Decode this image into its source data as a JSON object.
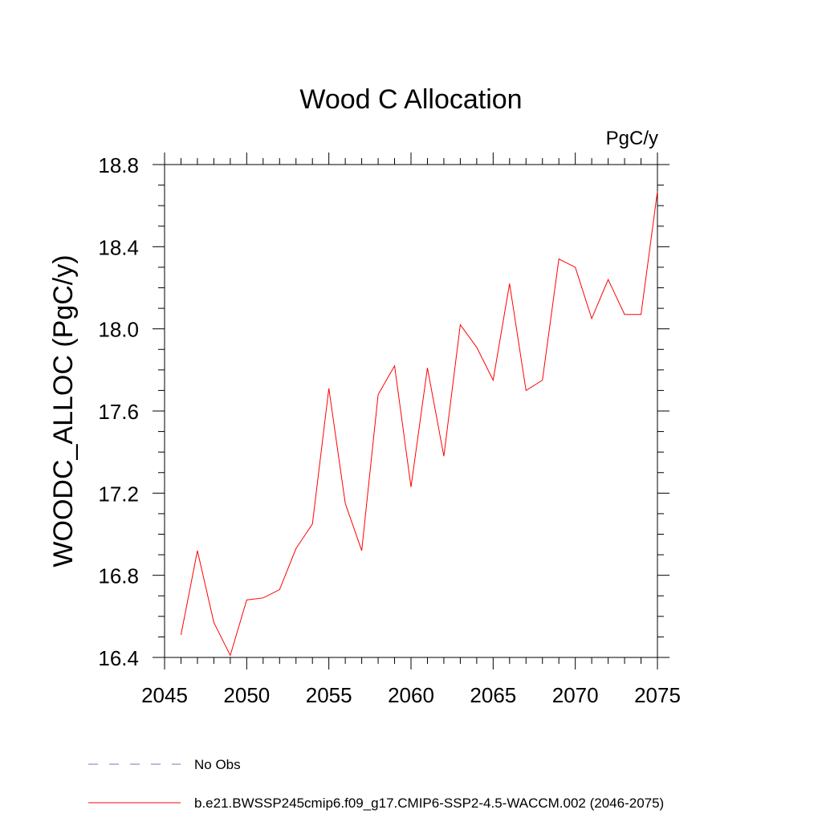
{
  "chart_data": {
    "type": "line",
    "title": "Wood C Allocation",
    "units_label": "PgC/y",
    "xlabel": "",
    "ylabel": "WOODC_ALLOC  (PgC/y)",
    "xlim": [
      2045,
      2075
    ],
    "ylim": [
      16.4,
      18.8
    ],
    "x_major_ticks": [
      2045,
      2050,
      2055,
      2060,
      2065,
      2070,
      2075
    ],
    "x_tick_labels": [
      "2045",
      "2050",
      "2055",
      "2060",
      "2065",
      "2070",
      "2075"
    ],
    "y_major_ticks": [
      16.4,
      16.8,
      17.2,
      17.6,
      18.0,
      18.4,
      18.8
    ],
    "y_tick_labels": [
      "16.4",
      "16.8",
      "17.2",
      "17.6",
      "18.0",
      "18.4",
      "18.8"
    ],
    "grid": false,
    "series": [
      {
        "name": "b.e21.BWSSP245cmip6.f09_g17.CMIP6-SSP2-4.5-WACCM.002 (2046-2075)",
        "color": "#ff0000",
        "style": "solid",
        "x": [
          2046,
          2047,
          2048,
          2049,
          2050,
          2051,
          2052,
          2053,
          2054,
          2055,
          2056,
          2057,
          2058,
          2059,
          2060,
          2061,
          2062,
          2063,
          2064,
          2065,
          2066,
          2067,
          2068,
          2069,
          2070,
          2071,
          2072,
          2073,
          2074,
          2075
        ],
        "values": [
          16.51,
          16.92,
          16.57,
          16.41,
          16.68,
          16.69,
          16.73,
          16.93,
          17.05,
          17.71,
          17.15,
          16.92,
          17.68,
          17.82,
          17.23,
          17.81,
          17.38,
          18.02,
          17.91,
          17.75,
          18.22,
          17.7,
          17.75,
          18.34,
          18.3,
          18.05,
          18.24,
          18.07,
          18.07,
          18.67
        ]
      }
    ],
    "legend": {
      "placement": "bottom",
      "entries": [
        {
          "label": "No Obs",
          "color": "#7777bb",
          "style": "dashed"
        },
        {
          "label": "b.e21.BWSSP245cmip6.f09_g17.CMIP6-SSP2-4.5-WACCM.002 (2046-2075)",
          "color": "#ff0000",
          "style": "solid"
        }
      ]
    }
  }
}
